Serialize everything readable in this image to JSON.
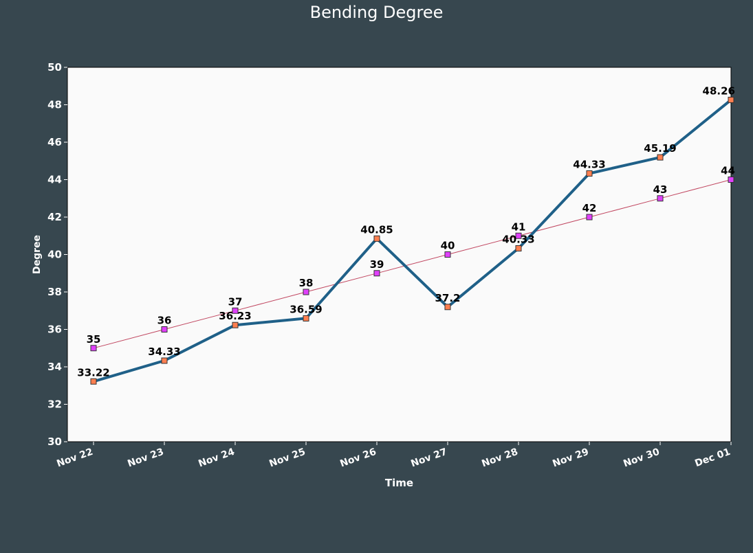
{
  "chart_data": {
    "type": "line",
    "title": "Bending Degree",
    "xlabel": "Time",
    "ylabel": "Degree",
    "categories": [
      "Nov 22",
      "Nov 23",
      "Nov 24",
      "Nov 25",
      "Nov 26",
      "Nov 27",
      "Nov 28",
      "Nov 29",
      "Nov 30",
      "Dec 01"
    ],
    "ylim": [
      30,
      50
    ],
    "yticks": [
      30,
      32,
      34,
      36,
      38,
      40,
      42,
      44,
      46,
      48,
      50
    ],
    "grid": false,
    "legend": "none",
    "series": [
      {
        "values": [
          33.22,
          34.33,
          36.23,
          36.59,
          40.85,
          37.2,
          40.33,
          44.33,
          45.19,
          48.26
        ],
        "labels": [
          "33.22",
          "34.33",
          "36.23",
          "36.59",
          "40.85",
          "37.2",
          "40.33",
          "44.33",
          "45.19",
          "48.26"
        ],
        "color": "#1f6088",
        "marker_color": "#ff7f50",
        "line_width": 4
      },
      {
        "values": [
          35,
          36,
          37,
          38,
          39,
          40,
          41,
          42,
          43,
          44
        ],
        "labels": [
          "35",
          "36",
          "37",
          "38",
          "39",
          "40",
          "41",
          "42",
          "43",
          "44"
        ],
        "color": "#c0455f",
        "marker_color": "#e040fb",
        "line_width": 1
      }
    ]
  },
  "colors": {
    "background": "#37474f",
    "plot_background": "#fafafa",
    "axis_text": "#ffffff",
    "label_text": "#000000"
  }
}
